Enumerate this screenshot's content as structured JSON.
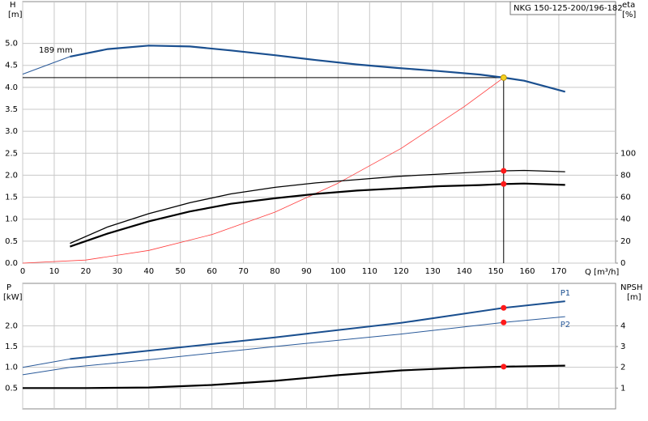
{
  "chart_data": [
    {
      "type": "line",
      "title": "NKG 150-125-200/196-182",
      "y_label": "H",
      "y_unit": "[m]",
      "y2_label": "eta",
      "y2_unit": "[%]",
      "x_label": "Q [m³/h]",
      "annotation": "189 mm",
      "xlim": [
        0,
        188
      ],
      "ylim": [
        0,
        5.95
      ],
      "y2lim": [
        0,
        238
      ],
      "grid": true,
      "show_x_tick_labels": true,
      "xticks": [
        0,
        10,
        20,
        30,
        40,
        50,
        60,
        70,
        80,
        90,
        100,
        110,
        120,
        130,
        140,
        150,
        160,
        170
      ],
      "yticks": [
        {
          "value": 0,
          "label": "0.0"
        },
        0.5,
        {
          "value": 1,
          "label": "1.0"
        },
        1.5,
        {
          "value": 2,
          "label": "2.0"
        },
        2.5,
        {
          "value": 3,
          "label": "3.0"
        },
        3.5,
        {
          "value": 4,
          "label": "4.0"
        },
        4.5,
        {
          "value": 5,
          "label": "5.0"
        }
      ],
      "y2ticks": [
        0,
        20,
        40,
        60,
        80,
        100
      ],
      "series": [
        {
          "x": [
            0,
            15
          ],
          "values": [
            4.3,
            4.7
          ],
          "color": "#2a5a9a",
          "width": 1
        },
        {
          "x": [
            15,
            27,
            40,
            53,
            66,
            80,
            93,
            106,
            119,
            132,
            145,
            152.5,
            159,
            172
          ],
          "values": [
            4.7,
            4.87,
            4.95,
            4.93,
            4.84,
            4.73,
            4.62,
            4.52,
            4.44,
            4.37,
            4.29,
            4.22,
            4.15,
            3.9
          ],
          "color": "#1a4f8f",
          "width": 2.2
        },
        {
          "x": [
            0,
            20,
            40,
            60,
            80,
            100,
            120,
            140,
            152.5
          ],
          "values": [
            0,
            0.07,
            0.29,
            0.65,
            1.16,
            1.82,
            2.61,
            3.56,
            4.22
          ],
          "color": "#ff3b3b",
          "width": 0.8
        },
        {
          "axis": "y2",
          "x": [
            15,
            27,
            40,
            53,
            66,
            80,
            93,
            106,
            119,
            132,
            145,
            152.5,
            159,
            172
          ],
          "values": [
            18,
            33,
            45,
            55,
            63,
            69,
            73,
            76,
            79,
            81,
            83,
            84,
            84.4,
            83.2
          ],
          "color": "#000000",
          "width": 1.3
        },
        {
          "axis": "y2",
          "x": [
            15,
            27,
            40,
            53,
            66,
            80,
            93,
            106,
            119,
            132,
            145,
            152.5,
            159,
            172
          ],
          "values": [
            15,
            27,
            38,
            47,
            54,
            59,
            63,
            66,
            68,
            70,
            71,
            72,
            72.4,
            71.2
          ],
          "color": "#000000",
          "width": 2.2
        }
      ],
      "markers": [
        {
          "x": 152.5,
          "y": 4.22,
          "color": "#f5d020",
          "crosshair": true
        },
        {
          "x": 152.5,
          "y": 84,
          "axis": "y2",
          "color": "#ff1a1a"
        },
        {
          "x": 152.5,
          "y": 72,
          "axis": "y2",
          "color": "#ff1a1a"
        }
      ]
    },
    {
      "type": "line",
      "y_label": "P",
      "y_unit": "[kW]",
      "y2_label": "NPSH",
      "y2_unit": "[m]",
      "xlim": [
        0,
        188
      ],
      "ylim": [
        0,
        3.02
      ],
      "y2lim": [
        0,
        6.04
      ],
      "grid": true,
      "show_x_tick_labels": false,
      "xticks": [
        0,
        10,
        20,
        30,
        40,
        50,
        60,
        70,
        80,
        90,
        100,
        110,
        120,
        130,
        140,
        150,
        160,
        170
      ],
      "yticks": [
        0.5,
        {
          "value": 1,
          "label": "1.0"
        },
        1.5,
        {
          "value": 2,
          "label": "2.0"
        }
      ],
      "y2ticks": [
        1,
        2,
        3,
        4
      ],
      "series": [
        {
          "x": [
            0,
            15
          ],
          "values": [
            1.0,
            1.2
          ],
          "color": "#2a5a9a",
          "width": 1
        },
        {
          "name": "P1",
          "label_position": "above",
          "x": [
            15,
            40,
            80,
            120,
            152.5,
            172
          ],
          "values": [
            1.2,
            1.4,
            1.72,
            2.07,
            2.43,
            2.59
          ],
          "color": "#1a4f8f",
          "width": 2
        },
        {
          "x": [
            0,
            15
          ],
          "values": [
            0.82,
            1.0
          ],
          "color": "#2a5a9a",
          "width": 1
        },
        {
          "name": "P2",
          "label_position": "below",
          "x": [
            15,
            40,
            80,
            120,
            152.5,
            172
          ],
          "values": [
            1.0,
            1.18,
            1.5,
            1.8,
            2.08,
            2.22
          ],
          "color": "#2a5a9a",
          "width": 1
        },
        {
          "axis": "y2",
          "x": [
            0,
            20,
            40,
            60,
            80,
            100,
            120,
            140,
            152.5,
            172
          ],
          "values": [
            1.0,
            1.0,
            1.03,
            1.15,
            1.35,
            1.62,
            1.85,
            1.98,
            2.03,
            2.08
          ],
          "color": "#000000",
          "width": 2.2
        }
      ],
      "markers": [
        {
          "x": 152.5,
          "y": 2.43,
          "color": "#ff1a1a"
        },
        {
          "x": 152.5,
          "y": 2.08,
          "color": "#ff1a1a"
        },
        {
          "x": 152.5,
          "y": 2.03,
          "axis": "y2",
          "color": "#ff1a1a"
        }
      ]
    }
  ]
}
